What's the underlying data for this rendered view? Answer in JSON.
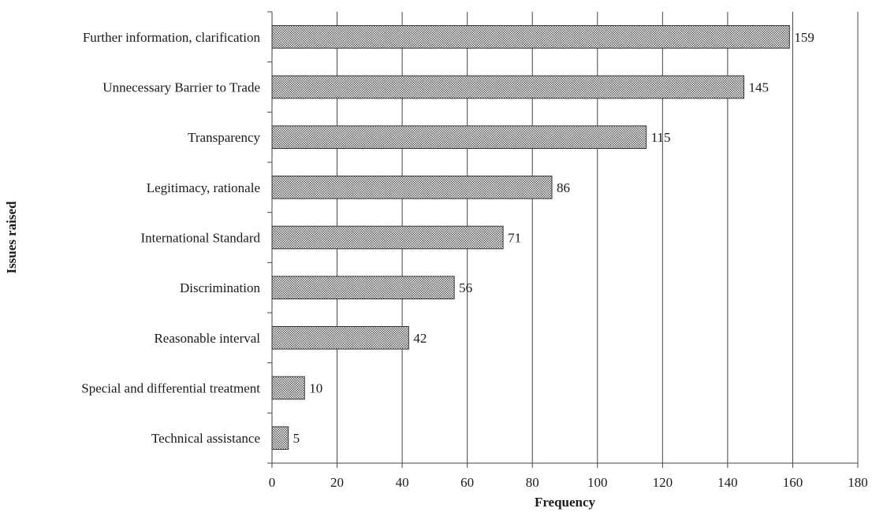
{
  "chart_data": {
    "type": "bar",
    "orientation": "horizontal",
    "title": "",
    "xlabel": "Frequency",
    "ylabel": "Issues raised",
    "xlim": [
      0,
      180
    ],
    "xticks": [
      0,
      20,
      40,
      60,
      80,
      100,
      120,
      140,
      160,
      180
    ],
    "grid": "vertical",
    "legend": "none",
    "bar_fill": "#d0d0d0",
    "bar_pattern": "dotted",
    "categories": [
      "Further information, clarification",
      "Unnecessary Barrier to Trade",
      "Transparency",
      "Legitimacy, rationale",
      "International Standard",
      "Discrimination",
      "Reasonable interval",
      "Special and differential treatment",
      "Technical assistance"
    ],
    "values": [
      159,
      145,
      115,
      86,
      71,
      56,
      42,
      10,
      5
    ],
    "data_labels": [
      "159",
      "145",
      "115",
      "86",
      "71",
      "56",
      "42",
      "10",
      "5"
    ]
  }
}
